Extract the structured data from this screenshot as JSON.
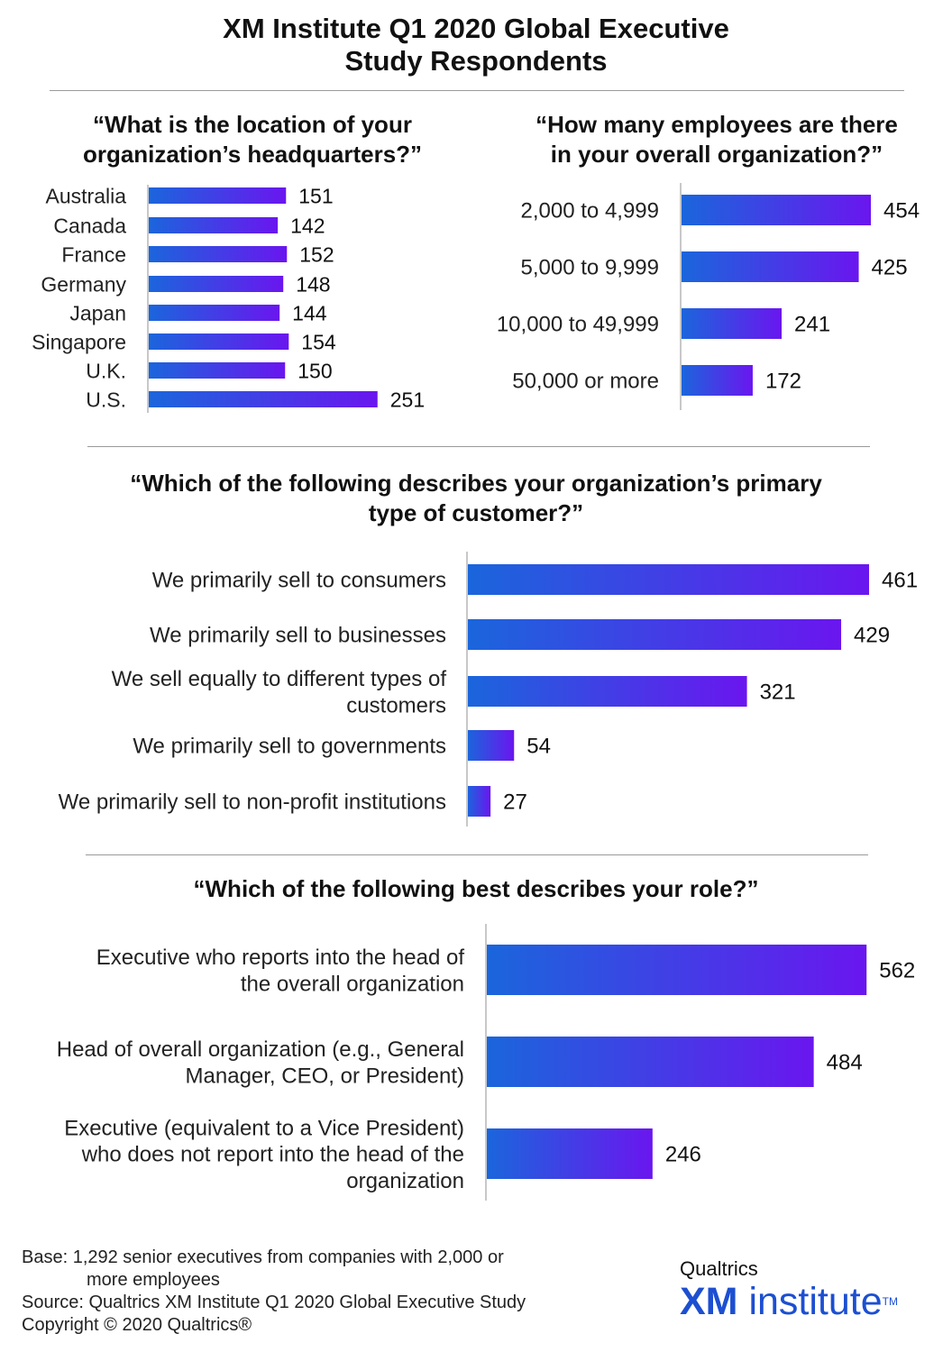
{
  "title": {
    "line1": "XM Institute Q1 2020 Global Executive",
    "line2": "Study Respondents"
  },
  "colors": {
    "bar_start": "#1a66dc",
    "bar_end": "#6a16ef",
    "axis": "#c8c8c8",
    "rule": "#9a9a9a",
    "logo": "#1c4fd1"
  },
  "q1": {
    "line1": "“What is the location of your",
    "line2": "organization’s headquarters?”"
  },
  "q2": {
    "line1": "“How many employees are there",
    "line2": "in your overall organization?”"
  },
  "q3": {
    "line1": "“Which of the following describes your organization’s primary",
    "line2": "type of customer?”"
  },
  "q4": {
    "line1": "“Which of the following best describes your role?”"
  },
  "chart_data": [
    {
      "type": "bar",
      "orientation": "horizontal",
      "title": "“What is the location of your organization’s headquarters?”",
      "categories": [
        [
          "Australia"
        ],
        [
          "Canada"
        ],
        [
          "France"
        ],
        [
          "Germany"
        ],
        [
          "Japan"
        ],
        [
          "Singapore"
        ],
        [
          "U.K."
        ],
        [
          "U.S."
        ]
      ],
      "values": [
        151,
        142,
        152,
        148,
        144,
        154,
        150,
        251
      ]
    },
    {
      "type": "bar",
      "orientation": "horizontal",
      "title": "“How many employees are there in your overall organization?”",
      "categories": [
        [
          "2,000 to 4,999"
        ],
        [
          "5,000 to 9,999"
        ],
        [
          "10,000 to 49,999"
        ],
        [
          "50,000 or more"
        ]
      ],
      "values": [
        454,
        425,
        241,
        172
      ]
    },
    {
      "type": "bar",
      "orientation": "horizontal",
      "title": "“Which of the following describes your organization’s primary type of customer?”",
      "categories": [
        [
          "We primarily sell to consumers"
        ],
        [
          "We primarily sell to businesses"
        ],
        [
          "We sell equally to different types of",
          "customers"
        ],
        [
          "We primarily sell to governments"
        ],
        [
          "We primarily sell to non-profit institutions"
        ]
      ],
      "values": [
        461,
        429,
        321,
        54,
        27
      ]
    },
    {
      "type": "bar",
      "orientation": "horizontal",
      "title": "“Which of the following best describes your role?”",
      "categories": [
        [
          "Executive who reports into the head of",
          "the overall organization"
        ],
        [
          "Head of overall organization (e.g., General",
          "Manager, CEO, or President)"
        ],
        [
          "Executive (equivalent to a Vice President)",
          "who does not report into the head of the",
          "organization"
        ]
      ],
      "values": [
        562,
        484,
        246
      ]
    }
  ],
  "footer": {
    "base_line1": "Base: 1,292 senior executives from companies with 2,000 or",
    "base_line2": "more employees",
    "source": "Source: Qualtrics XM Institute Q1 2020 Global Executive Study",
    "copyright": "Copyright © 2020 Qualtrics®"
  },
  "logo": {
    "brand": "Qualtrics",
    "xm": "XM",
    "institute": "institute",
    "tm": "TM"
  }
}
